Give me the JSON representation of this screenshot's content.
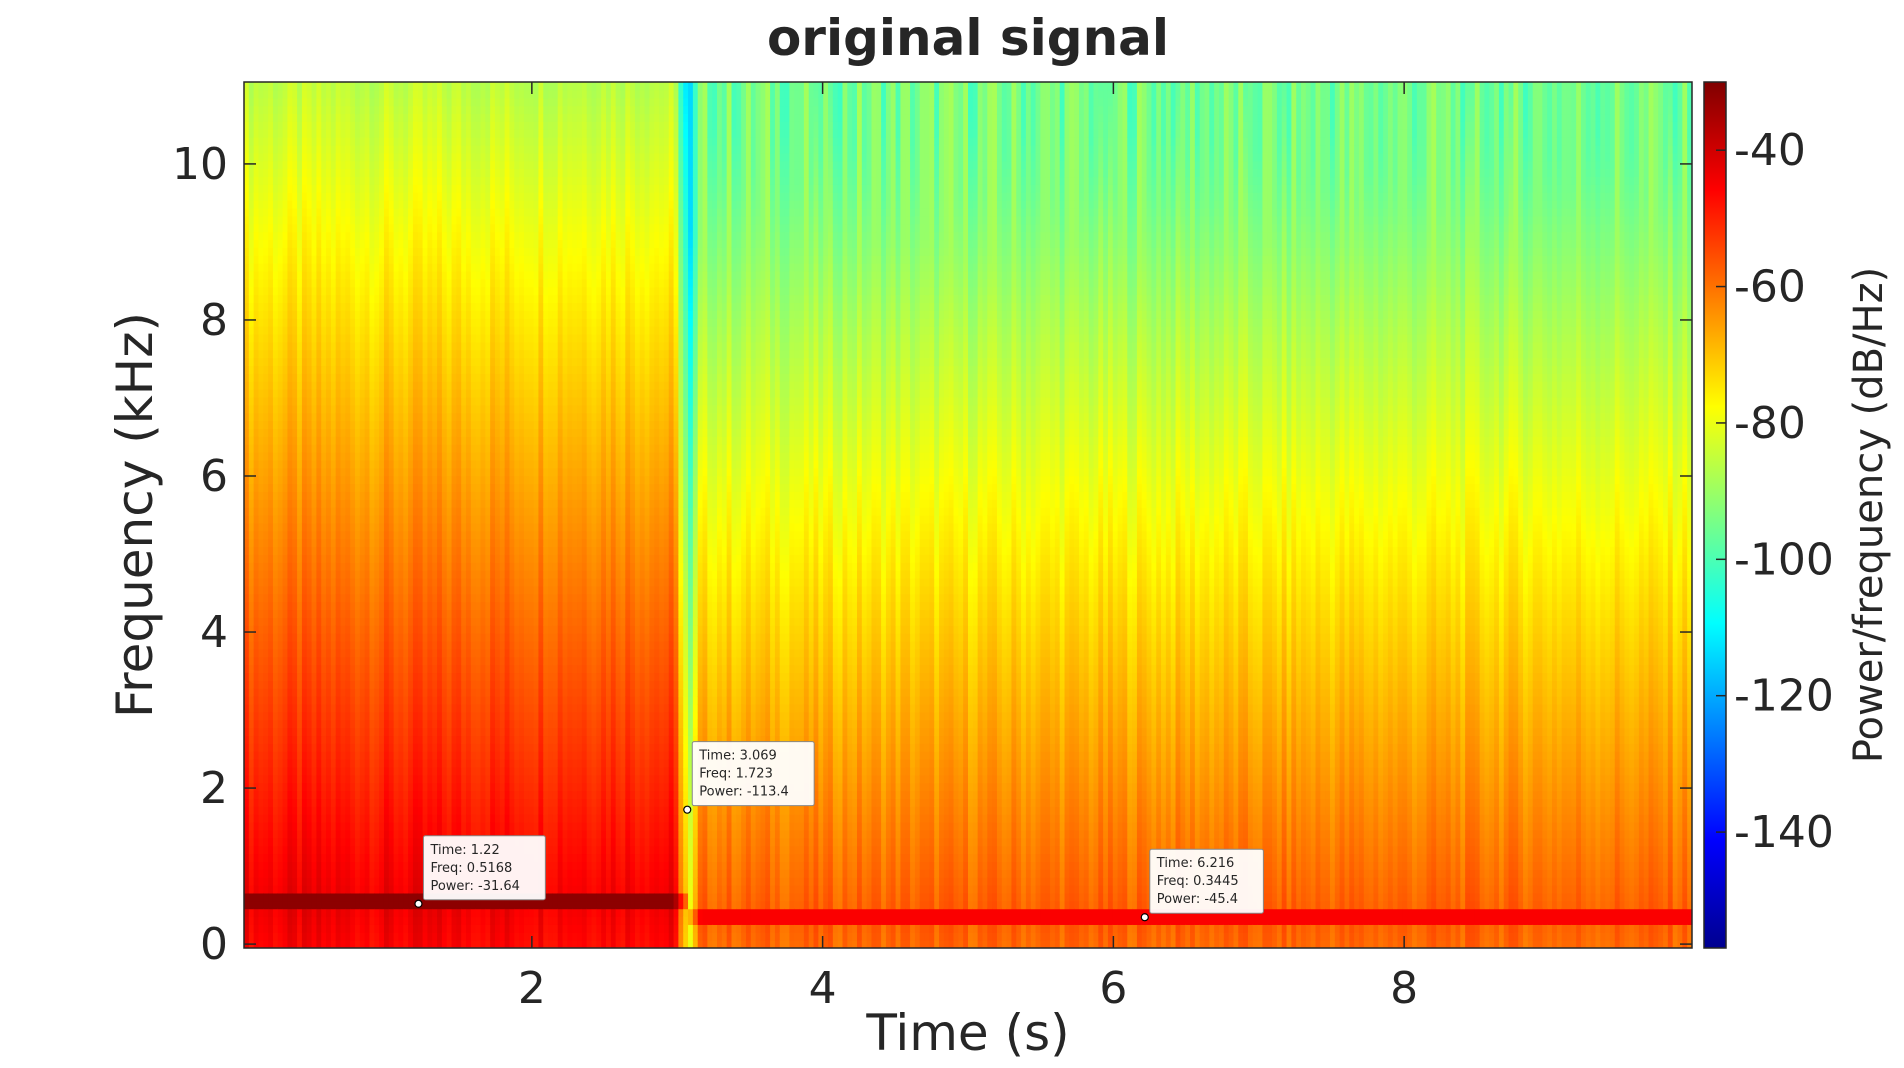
{
  "chart_data": {
    "type": "heatmap",
    "title": "original signal",
    "xlabel": "Time (s)",
    "ylabel": "Frequency (kHz)",
    "colorbar_label": "Power/frequency (dB/Hz)",
    "xlim": [
      0.02,
      9.98
    ],
    "ylim": [
      -0.05,
      11.05
    ],
    "clim": [
      -157,
      -30
    ],
    "colormap": "jet",
    "x_ticks": [
      2,
      4,
      6,
      8
    ],
    "x_tick_labels": [
      "2",
      "4",
      "6",
      "8"
    ],
    "y_ticks": [
      0,
      2,
      4,
      6,
      8,
      10
    ],
    "y_tick_labels": [
      "0",
      "2",
      "4",
      "6",
      "8",
      "10"
    ],
    "c_ticks": [
      -40,
      -60,
      -80,
      -100,
      -120,
      -140
    ],
    "c_tick_labels": [
      "-40",
      "-60",
      "-80",
      "-100",
      "-120",
      "-140"
    ],
    "tones": [
      {
        "t_start": 0.02,
        "t_end": 3.05,
        "freq": 0.5168,
        "power": -31.64
      },
      {
        "t_start": 3.05,
        "t_end": 9.98,
        "freq": 0.3445,
        "power": -45.4
      }
    ],
    "background_level": -95,
    "null_time": 3.069,
    "datatips": [
      {
        "time": 1.22,
        "freq": 0.5168,
        "power": -31.64,
        "lines": [
          "Time: 1.22",
          "Freq: 0.5168",
          "Power: -31.64"
        ]
      },
      {
        "time": 3.069,
        "freq": 1.723,
        "power": -113.4,
        "lines": [
          "Time: 3.069",
          "Freq: 1.723",
          "Power: -113.4"
        ]
      },
      {
        "time": 6.216,
        "freq": 0.3445,
        "power": -45.4,
        "lines": [
          "Time: 6.216",
          "Freq: 0.3445",
          "Power: -45.4"
        ]
      }
    ]
  }
}
